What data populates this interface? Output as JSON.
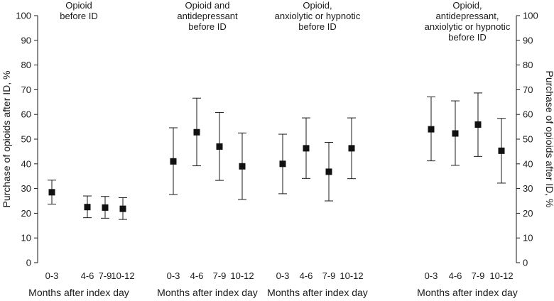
{
  "chart_data": {
    "type": "scatter",
    "ylabel_left": "Purchase of opioids after ID, %",
    "ylabel_right": "Purchase of opioids after ID, %",
    "ylim": [
      0,
      100
    ],
    "yticks": [
      "0",
      "10",
      "20",
      "30",
      "40",
      "50",
      "60",
      "70",
      "80",
      "90",
      "100"
    ],
    "categories": [
      "0-3",
      "4-6",
      "7-9",
      "10-12"
    ],
    "panels": [
      {
        "title_lines": [
          "Opioid",
          "before ID"
        ],
        "xlabel": "Months after index day",
        "values": [
          28.5,
          22.5,
          22.3,
          21.8
        ],
        "lower": [
          23.7,
          18.2,
          18.0,
          17.5
        ],
        "upper": [
          33.4,
          27.0,
          26.8,
          26.3
        ]
      },
      {
        "title_lines": [
          "Opioid and",
          "antidepressant",
          "before ID"
        ],
        "xlabel": "Months after index day",
        "values": [
          41.0,
          52.8,
          47.0,
          39.0
        ],
        "lower": [
          27.6,
          39.2,
          33.3,
          25.6
        ],
        "upper": [
          54.6,
          66.6,
          60.8,
          52.5
        ]
      },
      {
        "title_lines": [
          "Opioid,",
          "anxiolytic or hypnotic",
          "before ID"
        ],
        "xlabel": "Months after index day",
        "values": [
          40.0,
          46.3,
          36.8,
          46.3
        ],
        "lower": [
          27.9,
          34.1,
          25.0,
          34.0
        ],
        "upper": [
          52.0,
          58.6,
          48.7,
          58.6
        ]
      },
      {
        "title_lines": [
          "Opioid,",
          "antidepressant,",
          "anxiolytic or hypnotic",
          "before ID"
        ],
        "xlabel": "Months after index day",
        "values": [
          54.0,
          52.3,
          55.9,
          45.3
        ],
        "lower": [
          41.2,
          39.4,
          43.0,
          32.2
        ],
        "upper": [
          67.1,
          65.5,
          68.7,
          58.4
        ]
      }
    ]
  }
}
